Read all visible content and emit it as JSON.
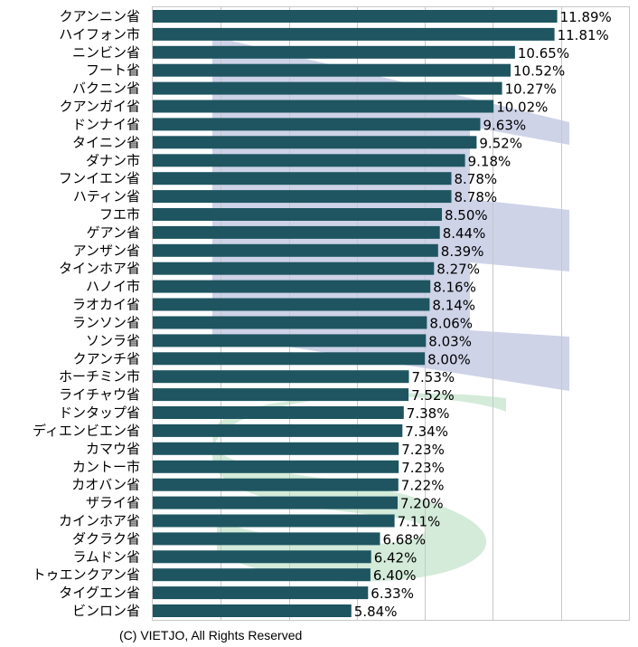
{
  "copyright": "(C) VIETJO, All Rights Reserved",
  "chart_data": {
    "type": "bar",
    "orientation": "horizontal",
    "title": "",
    "xlabel": "",
    "ylabel": "",
    "xlim": [
      0,
      14
    ],
    "grid": true,
    "value_suffix": "%",
    "bar_color": "#1e5560",
    "watermark_colors": [
      "#c5cbe4",
      "#cfe9d6"
    ],
    "categories": [
      "クアンニン省",
      "ハイフォン市",
      "ニンビン省",
      "フート省",
      "バクニン省",
      "クアンガイ省",
      "ドンナイ省",
      "タイニン省",
      "ダナン市",
      "フンイエン省",
      "ハティン省",
      "フエ市",
      "ゲアン省",
      "アンザン省",
      "タインホア省",
      "ハノイ市",
      "ラオカイ省",
      "ランソン省",
      "ソンラ省",
      "クアンチ省",
      "ホーチミン市",
      "ライチャウ省",
      "ドンタップ省",
      "ディエンビエン省",
      "カマウ省",
      "カントー市",
      "カオバン省",
      "ザライ省",
      "カインホア省",
      "ダクラク省",
      "ラムドン省",
      "トゥエンクアン省",
      "タイグエン省",
      "ビンロン省"
    ],
    "values": [
      11.89,
      11.81,
      10.65,
      10.52,
      10.27,
      10.02,
      9.63,
      9.52,
      9.18,
      8.78,
      8.78,
      8.5,
      8.44,
      8.39,
      8.27,
      8.16,
      8.14,
      8.06,
      8.03,
      8.0,
      7.53,
      7.52,
      7.38,
      7.34,
      7.23,
      7.23,
      7.22,
      7.2,
      7.11,
      6.68,
      6.42,
      6.4,
      6.33,
      5.84
    ],
    "labels": [
      "11.89%",
      "11.81%",
      "10.65%",
      "10.52%",
      "10.27%",
      "10.02%",
      "9.63%",
      "9.52%",
      "9.18%",
      "8.78%",
      "8.78%",
      "8.50%",
      "8.44%",
      "8.39%",
      "8.27%",
      "8.16%",
      "8.14%",
      "8.06%",
      "8.03%",
      "8.00%",
      "7.53%",
      "7.52%",
      "7.38%",
      "7.34%",
      "7.23%",
      "7.23%",
      "7.22%",
      "7.20%",
      "7.11%",
      "6.68%",
      "6.42%",
      "6.40%",
      "6.33%",
      "5.84%"
    ]
  }
}
